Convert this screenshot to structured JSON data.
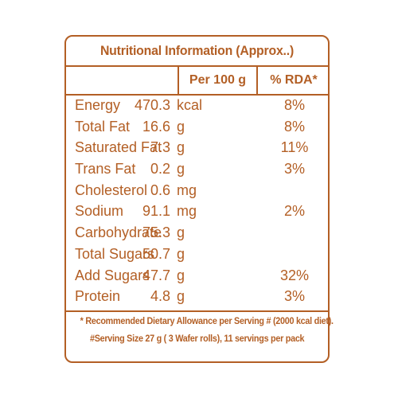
{
  "title": "Nutritional Information (Approx..)",
  "columns": {
    "per100": "Per 100 g",
    "rda": "% RDA*"
  },
  "rows": [
    {
      "name": "Energy",
      "value": "470.3",
      "unit": "kcal",
      "rda": "8%"
    },
    {
      "name": "Total Fat",
      "value": "16.6",
      "unit": "g",
      "rda": "8%"
    },
    {
      "name": "Saturated Fat",
      "value": "7.3",
      "unit": "g",
      "rda": "11%"
    },
    {
      "name": "Trans Fat",
      "value": "0.2",
      "unit": "g",
      "rda": "3%"
    },
    {
      "name": "Cholesterol",
      "value": "0.6",
      "unit": "mg",
      "rda": ""
    },
    {
      "name": "Sodium",
      "value": "91.1",
      "unit": "mg",
      "rda": "2%"
    },
    {
      "name": "Carbohydrate",
      "value": "75.3",
      "unit": "g",
      "rda": ""
    },
    {
      "name": "Total Sugars",
      "value": "50.7",
      "unit": "g",
      "rda": ""
    },
    {
      "name": "Add Sugars",
      "value": "47.7",
      "unit": "g",
      "rda": "32%"
    },
    {
      "name": "Protein",
      "value": "4.8",
      "unit": "g",
      "rda": "3%"
    }
  ],
  "footnotes": {
    "line1": "* Recommended Dietary Allowance per Serving # (2000 kcal diet).",
    "line2": "#Serving Size 27 g ( 3  Wafer rolls),  11 servings per pack"
  },
  "colors": {
    "ink": "#b35f25",
    "background": "#ffffff"
  }
}
